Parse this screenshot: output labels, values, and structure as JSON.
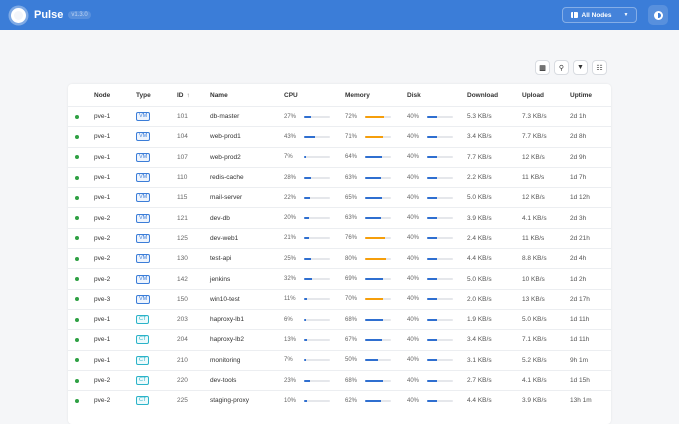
{
  "header": {
    "title": "Pulse",
    "version": "v1.3.0",
    "node_filter": "All Nodes",
    "theme_toggle": "theme-toggle-icon"
  },
  "toolbar": {
    "buttons": [
      "columns-icon",
      "search-icon",
      "filter-icon",
      "settings-sliders-icon"
    ]
  },
  "table": {
    "columns": [
      "",
      "Node",
      "Type",
      "ID",
      "Name",
      "CPU",
      "Memory",
      "Disk",
      "Download",
      "Upload",
      "Uptime"
    ],
    "sort": {
      "column": "ID",
      "direction": "asc",
      "icon": "↑"
    },
    "rows": [
      {
        "status": "running",
        "node": "pve-1",
        "type": "VM",
        "id": "101",
        "name": "db-master",
        "cpu": "27%",
        "cpu_v": 27,
        "mem": "72%",
        "mem_v": 72,
        "disk": "40%",
        "disk_v": 40,
        "download": "5.3 KB/s",
        "upload": "7.3 KB/s",
        "uptime": "2d 1h"
      },
      {
        "status": "running",
        "node": "pve-1",
        "type": "VM",
        "id": "104",
        "name": "web-prod1",
        "cpu": "43%",
        "cpu_v": 43,
        "mem": "71%",
        "mem_v": 71,
        "disk": "40%",
        "disk_v": 40,
        "download": "3.4 KB/s",
        "upload": "7.7 KB/s",
        "uptime": "2d 8h"
      },
      {
        "status": "running",
        "node": "pve-1",
        "type": "VM",
        "id": "107",
        "name": "web-prod2",
        "cpu": "7%",
        "cpu_v": 7,
        "mem": "64%",
        "mem_v": 64,
        "disk": "40%",
        "disk_v": 40,
        "download": "7.7 KB/s",
        "upload": "12 KB/s",
        "uptime": "2d 9h"
      },
      {
        "status": "running",
        "node": "pve-1",
        "type": "VM",
        "id": "110",
        "name": "redis-cache",
        "cpu": "28%",
        "cpu_v": 28,
        "mem": "63%",
        "mem_v": 63,
        "disk": "40%",
        "disk_v": 40,
        "download": "2.2 KB/s",
        "upload": "11 KB/s",
        "uptime": "1d 7h"
      },
      {
        "status": "running",
        "node": "pve-1",
        "type": "VM",
        "id": "115",
        "name": "mail-server",
        "cpu": "22%",
        "cpu_v": 22,
        "mem": "65%",
        "mem_v": 65,
        "disk": "40%",
        "disk_v": 40,
        "download": "5.0 KB/s",
        "upload": "12 KB/s",
        "uptime": "1d 12h"
      },
      {
        "status": "running",
        "node": "pve-2",
        "type": "VM",
        "id": "121",
        "name": "dev-db",
        "cpu": "20%",
        "cpu_v": 20,
        "mem": "63%",
        "mem_v": 63,
        "disk": "40%",
        "disk_v": 40,
        "download": "3.9 KB/s",
        "upload": "4.1 KB/s",
        "uptime": "2d 3h"
      },
      {
        "status": "running",
        "node": "pve-2",
        "type": "VM",
        "id": "125",
        "name": "dev-web1",
        "cpu": "21%",
        "cpu_v": 21,
        "mem": "76%",
        "mem_v": 76,
        "disk": "40%",
        "disk_v": 40,
        "download": "2.4 KB/s",
        "upload": "11 KB/s",
        "uptime": "2d 21h"
      },
      {
        "status": "running",
        "node": "pve-2",
        "type": "VM",
        "id": "130",
        "name": "test-api",
        "cpu": "25%",
        "cpu_v": 25,
        "mem": "80%",
        "mem_v": 80,
        "disk": "40%",
        "disk_v": 40,
        "download": "4.4 KB/s",
        "upload": "8.8 KB/s",
        "uptime": "2d 4h"
      },
      {
        "status": "running",
        "node": "pve-2",
        "type": "VM",
        "id": "142",
        "name": "jenkins",
        "cpu": "32%",
        "cpu_v": 32,
        "mem": "69%",
        "mem_v": 69,
        "disk": "40%",
        "disk_v": 40,
        "download": "5.0 KB/s",
        "upload": "10 KB/s",
        "uptime": "1d 2h"
      },
      {
        "status": "running",
        "node": "pve-3",
        "type": "VM",
        "id": "150",
        "name": "win10-test",
        "cpu": "11%",
        "cpu_v": 11,
        "mem": "70%",
        "mem_v": 70,
        "disk": "40%",
        "disk_v": 40,
        "download": "2.0 KB/s",
        "upload": "13 KB/s",
        "uptime": "2d 17h"
      },
      {
        "status": "running",
        "node": "pve-1",
        "type": "CT",
        "id": "203",
        "name": "haproxy-lb1",
        "cpu": "6%",
        "cpu_v": 6,
        "mem": "68%",
        "mem_v": 68,
        "disk": "40%",
        "disk_v": 40,
        "download": "1.9 KB/s",
        "upload": "5.0 KB/s",
        "uptime": "1d 11h"
      },
      {
        "status": "running",
        "node": "pve-1",
        "type": "CT",
        "id": "204",
        "name": "haproxy-lb2",
        "cpu": "13%",
        "cpu_v": 13,
        "mem": "67%",
        "mem_v": 67,
        "disk": "40%",
        "disk_v": 40,
        "download": "3.4 KB/s",
        "upload": "7.1 KB/s",
        "uptime": "1d 11h"
      },
      {
        "status": "running",
        "node": "pve-1",
        "type": "CT",
        "id": "210",
        "name": "monitoring",
        "cpu": "7%",
        "cpu_v": 7,
        "mem": "50%",
        "mem_v": 50,
        "disk": "40%",
        "disk_v": 40,
        "download": "3.1 KB/s",
        "upload": "5.2 KB/s",
        "uptime": "9h 1m"
      },
      {
        "status": "running",
        "node": "pve-2",
        "type": "CT",
        "id": "220",
        "name": "dev-tools",
        "cpu": "23%",
        "cpu_v": 23,
        "mem": "68%",
        "mem_v": 68,
        "disk": "40%",
        "disk_v": 40,
        "download": "2.7 KB/s",
        "upload": "4.1 KB/s",
        "uptime": "1d 15h"
      },
      {
        "status": "running",
        "node": "pve-2",
        "type": "CT",
        "id": "225",
        "name": "staging-proxy",
        "cpu": "10%",
        "cpu_v": 10,
        "mem": "62%",
        "mem_v": 62,
        "disk": "40%",
        "disk_v": 40,
        "download": "4.4 KB/s",
        "upload": "3.9 KB/s",
        "uptime": "13h 1m"
      }
    ]
  },
  "colors": {
    "header": "#3b7dd8",
    "bar_normal": "#2f6fd0",
    "bar_warning": "#f59e0b",
    "status_running": "#2ea043",
    "vm_badge": "#3b7dd8",
    "ct_badge": "#2bb3c8"
  }
}
